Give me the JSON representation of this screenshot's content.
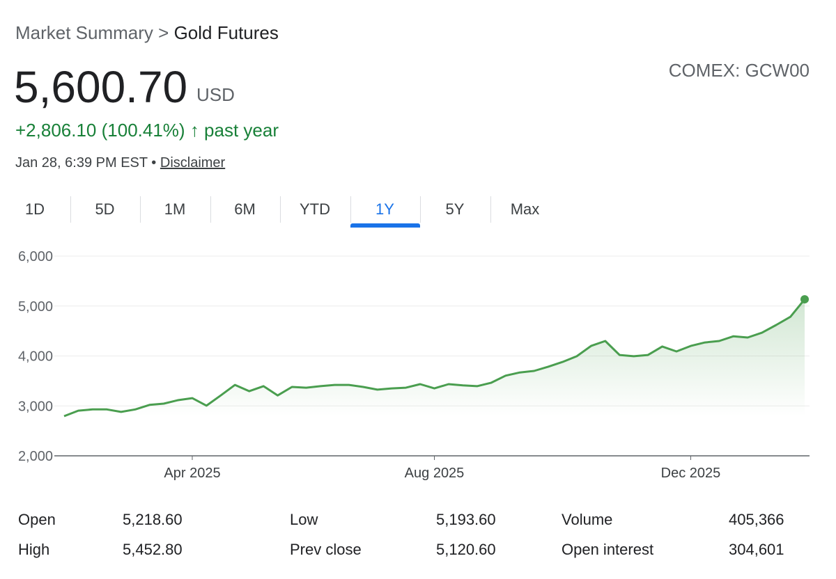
{
  "header": {
    "breadcrumb": "Market Summary",
    "separator": ">",
    "current": "Gold Futures",
    "price": "5,600.70",
    "currency": "USD",
    "exchange": "COMEX: GCW00",
    "change": "+2,806.10 (100.41%)",
    "period": "past year",
    "timestamp": "Jan 28, 6:39 PM EST",
    "disclaimer": "Disclaimer"
  },
  "tabs": {
    "items": [
      "1D",
      "5D",
      "1M",
      "6M",
      "YTD",
      "1Y",
      "5Y",
      "Max"
    ],
    "selected": "1Y"
  },
  "chart_data": {
    "type": "line",
    "color": "#4a9e4f",
    "grid": true,
    "categories": [
      null,
      null,
      null,
      null,
      null,
      null,
      null,
      null,
      null,
      "Apr 2025",
      null,
      null,
      null,
      null,
      null,
      null,
      null,
      null,
      null,
      null,
      null,
      null,
      null,
      null,
      null,
      null,
      "Aug 2025",
      null,
      null,
      null,
      null,
      null,
      null,
      null,
      null,
      null,
      null,
      null,
      null,
      null,
      null,
      null,
      null,
      null,
      "Dec 2025",
      null,
      null,
      null,
      null,
      null,
      null,
      null,
      null
    ],
    "values": [
      2795,
      2905,
      2930,
      2930,
      2880,
      2930,
      3020,
      3045,
      3115,
      3155,
      3005,
      3210,
      3420,
      3295,
      3395,
      3210,
      3380,
      3365,
      3395,
      3420,
      3420,
      3380,
      3325,
      3350,
      3365,
      3435,
      3350,
      3435,
      3410,
      3395,
      3465,
      3605,
      3670,
      3700,
      3785,
      3880,
      3995,
      4200,
      4300,
      4020,
      3995,
      4020,
      4190,
      4090,
      4200,
      4270,
      4300,
      4395,
      4370,
      4465,
      4620,
      4785,
      5135
    ],
    "ylim": [
      2000,
      6000
    ],
    "yticks": [
      {
        "value": 2000,
        "label": "2,000"
      },
      {
        "value": 3000,
        "label": "3,000"
      },
      {
        "value": 4000,
        "label": "4,000"
      },
      {
        "value": 5000,
        "label": "5,000"
      },
      {
        "value": 6000,
        "label": "6,000"
      }
    ]
  },
  "stats": {
    "rows": [
      [
        "Open",
        "5,218.60",
        "Low",
        "5,193.60",
        "Volume",
        "405,366"
      ],
      [
        "High",
        "5,452.80",
        "Prev close",
        "5,120.60",
        "Open interest",
        "304,601"
      ]
    ]
  }
}
